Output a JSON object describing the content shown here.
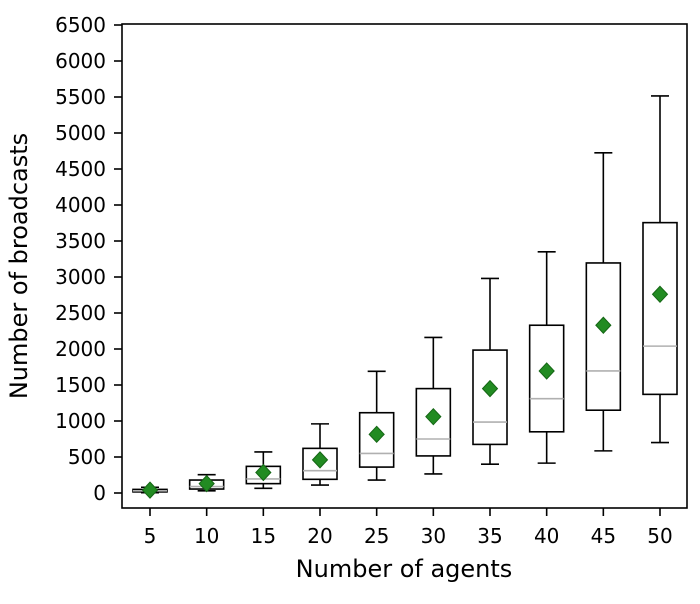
{
  "figure": {
    "background": "#ffffff"
  },
  "chart_data": {
    "type": "boxplot",
    "title": "",
    "xlabel": "Number of agents",
    "ylabel": "Number of broadcasts",
    "categories": [
      5,
      10,
      15,
      20,
      25,
      30,
      35,
      40,
      45,
      50
    ],
    "x_tick_labels": [
      "5",
      "10",
      "15",
      "20",
      "25",
      "30",
      "35",
      "40",
      "45",
      "50"
    ],
    "y_ticks": [
      0,
      500,
      1000,
      1500,
      2000,
      2500,
      3000,
      3500,
      4000,
      4500,
      5000,
      5500,
      6000,
      6500
    ],
    "ylim": [
      -210,
      6500
    ],
    "grid": false,
    "legend": null,
    "boxes": [
      {
        "agents": 5,
        "whislo": 5,
        "q1": 15,
        "med": 30,
        "q3": 50,
        "whishi": 80,
        "mean": 40
      },
      {
        "agents": 10,
        "whislo": 30,
        "q1": 55,
        "med": 90,
        "q3": 180,
        "whishi": 255,
        "mean": 130
      },
      {
        "agents": 15,
        "whislo": 65,
        "q1": 130,
        "med": 195,
        "q3": 370,
        "whishi": 570,
        "mean": 285
      },
      {
        "agents": 20,
        "whislo": 110,
        "q1": 190,
        "med": 310,
        "q3": 620,
        "whishi": 960,
        "mean": 460
      },
      {
        "agents": 25,
        "whislo": 180,
        "q1": 360,
        "med": 550,
        "q3": 1115,
        "whishi": 1690,
        "mean": 815
      },
      {
        "agents": 30,
        "whislo": 265,
        "q1": 515,
        "med": 750,
        "q3": 1450,
        "whishi": 2160,
        "mean": 1060
      },
      {
        "agents": 35,
        "whislo": 400,
        "q1": 675,
        "med": 985,
        "q3": 1985,
        "whishi": 2980,
        "mean": 1450
      },
      {
        "agents": 40,
        "whislo": 415,
        "q1": 850,
        "med": 1310,
        "q3": 2330,
        "whishi": 3350,
        "mean": 1695
      },
      {
        "agents": 45,
        "whislo": 585,
        "q1": 1150,
        "med": 1695,
        "q3": 3195,
        "whishi": 4725,
        "mean": 2330
      },
      {
        "agents": 50,
        "whislo": 700,
        "q1": 1370,
        "med": 2040,
        "q3": 3755,
        "whishi": 5515,
        "mean": 2760
      }
    ],
    "colors": {
      "box_stroke": "#000000",
      "box_fill": "#ffffff",
      "median": "#b0b0b0",
      "whisker": "#000000",
      "mean_fill": "#228b22",
      "mean_edge": "#156615",
      "background": "#ffffff"
    }
  }
}
